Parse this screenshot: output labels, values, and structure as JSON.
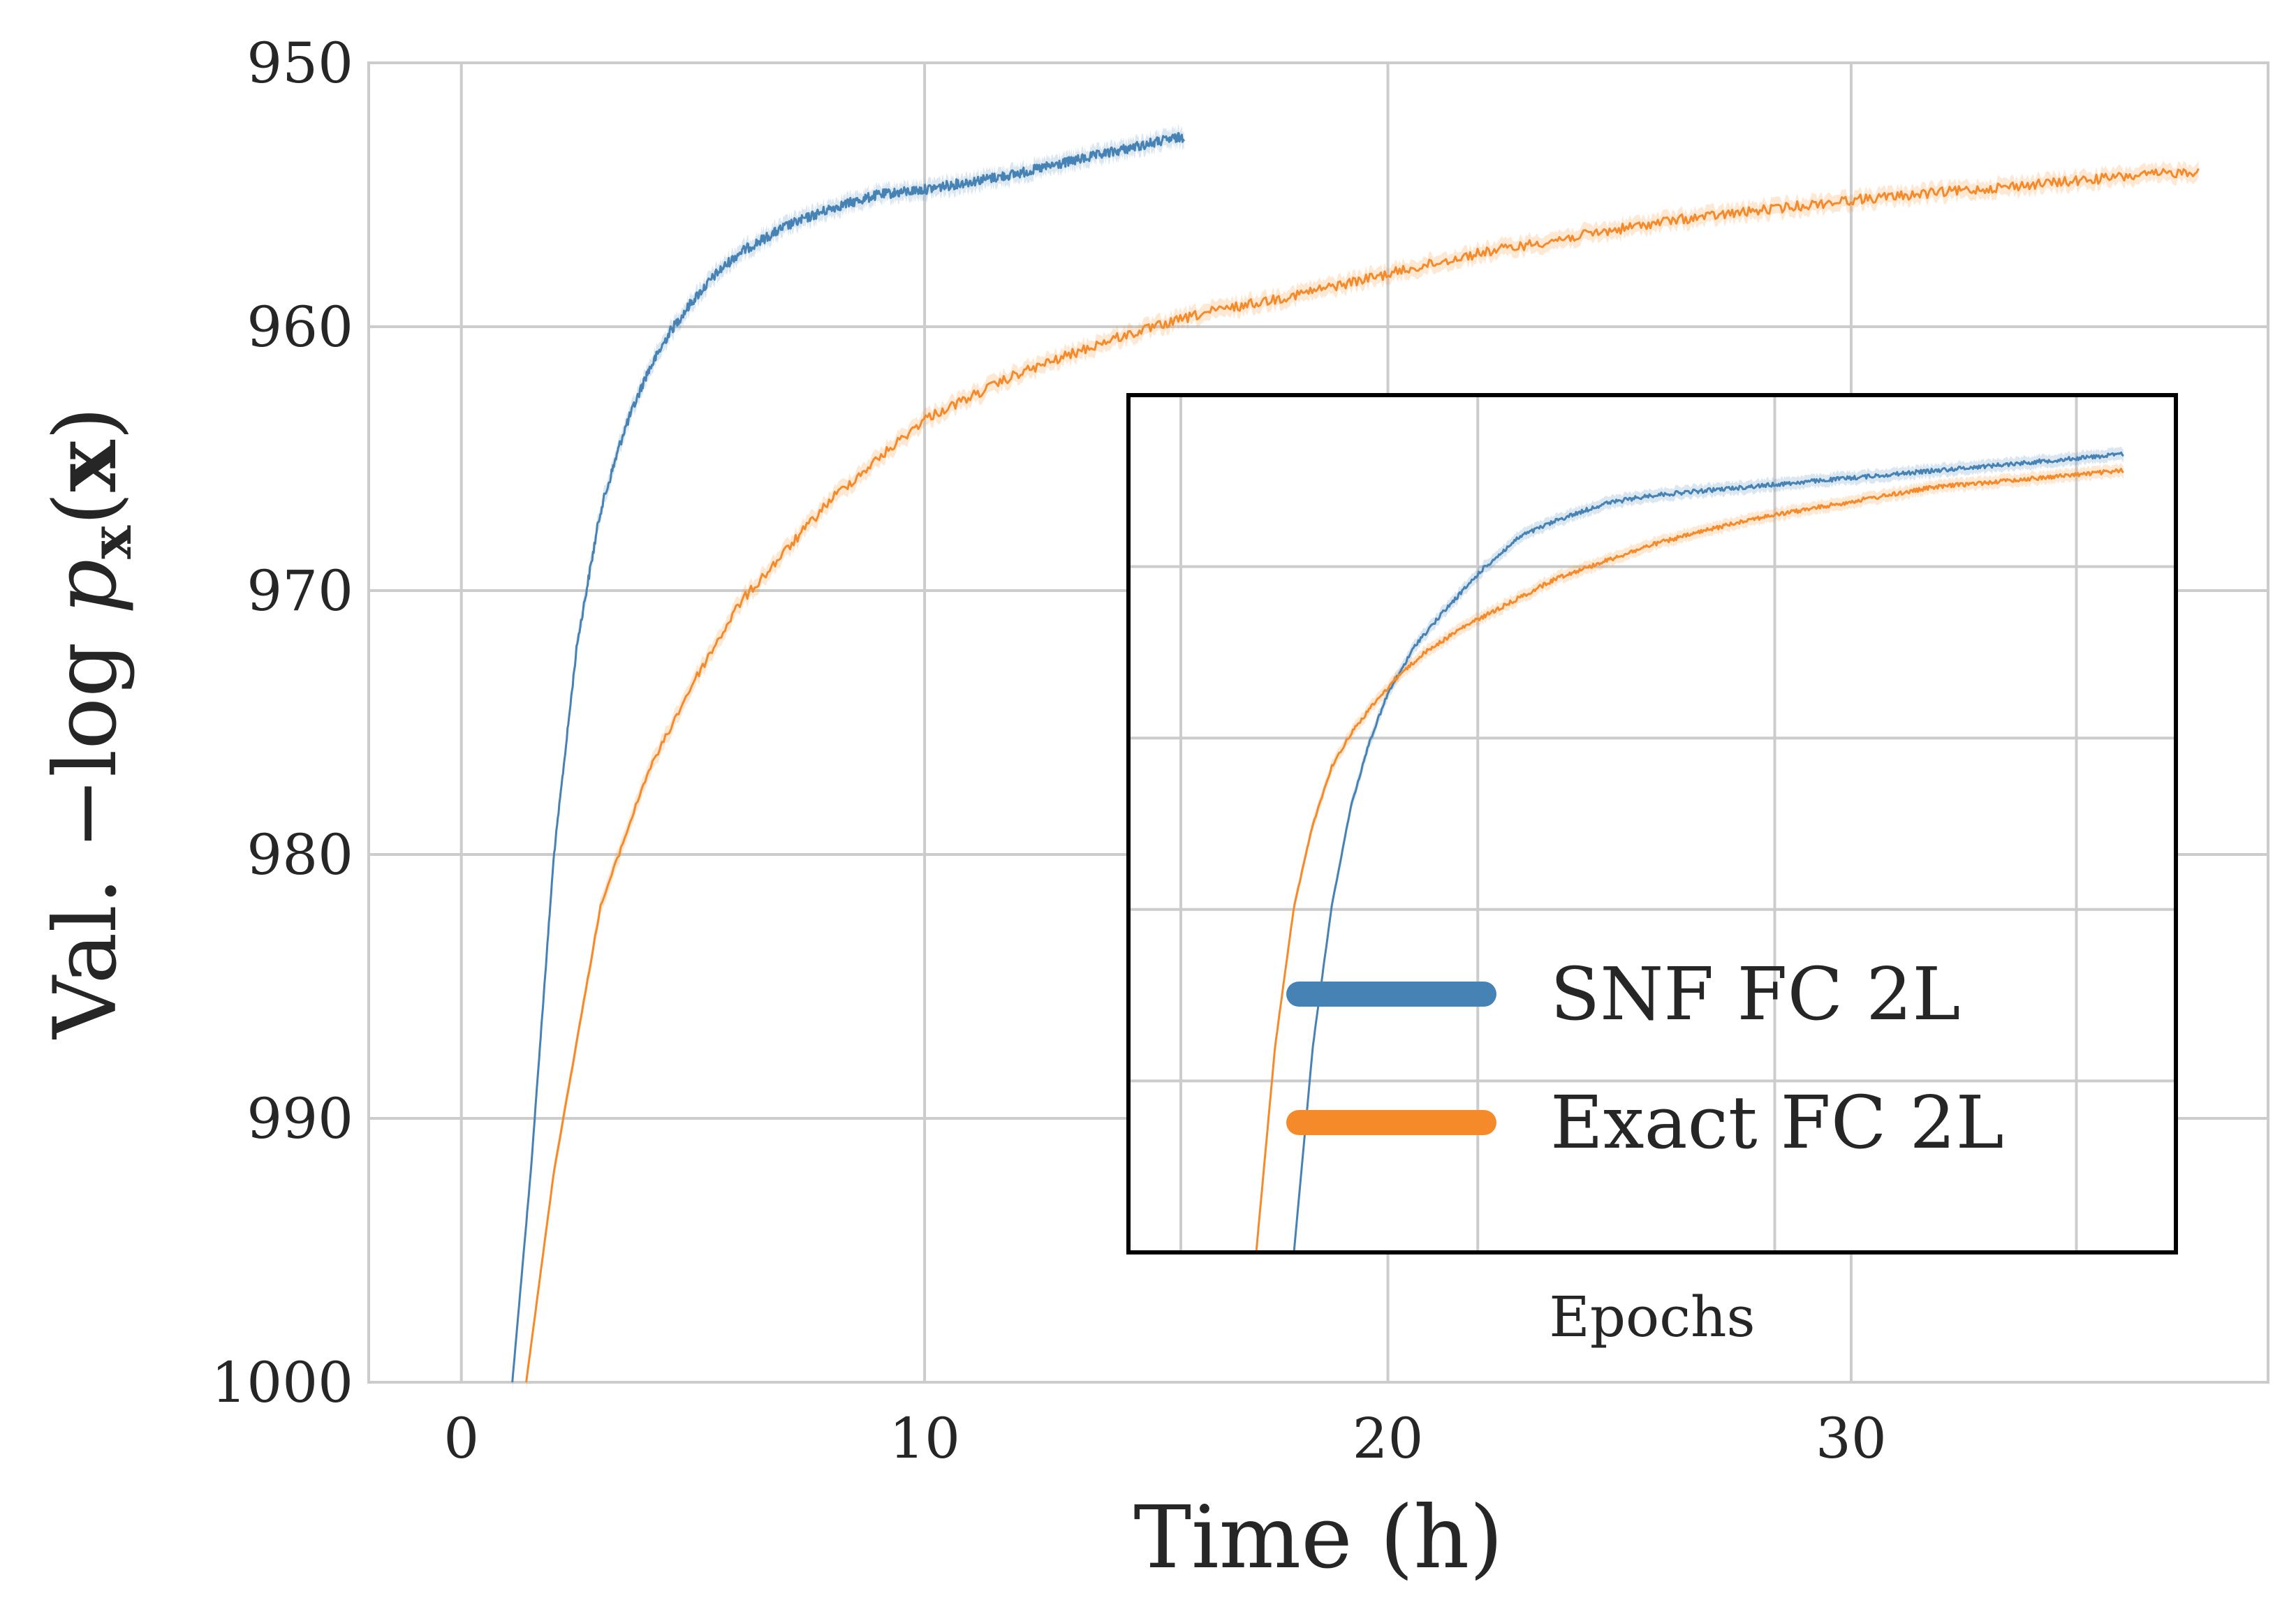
{
  "chart_data": {
    "type": "line",
    "xlabel": "Time (h)",
    "ylabel": "Val. −log pₓ(x)",
    "ylabel_parts": {
      "prefix": "Val. −log ",
      "p": "p",
      "sub": "x",
      "open": "(",
      "x": "x",
      "close": ")"
    },
    "xlim": [
      -2,
      39
    ],
    "ylim": [
      1000,
      950
    ],
    "y_inverted": true,
    "xticks": [
      0,
      10,
      20,
      30
    ],
    "yticks": [
      950,
      960,
      970,
      980,
      990,
      1000
    ],
    "xtick_labels": [
      "0",
      "10",
      "20",
      "30"
    ],
    "ytick_labels": [
      "950",
      "960",
      "970",
      "980",
      "990",
      "1000"
    ],
    "grid": true,
    "series": [
      {
        "name": "SNF FC 2L",
        "color": "#4682b4",
        "x": [
          1.1,
          1.5,
          2.0,
          2.5,
          3.0,
          3.5,
          4.0,
          4.5,
          5.0,
          5.5,
          6.0,
          7.0,
          8.0,
          9.0,
          10.0,
          11.0,
          12.0,
          13.0,
          14.0,
          15.0,
          15.6
        ],
        "y": [
          1000,
          992,
          980,
          972,
          967,
          964,
          961.8,
          960.2,
          959.0,
          958.0,
          957.2,
          956.2,
          955.5,
          955.0,
          954.8,
          954.5,
          954.2,
          953.8,
          953.4,
          953.0,
          952.8
        ]
      },
      {
        "name": "Exact FC 2L",
        "color": "#f58a2a",
        "x": [
          1.4,
          2.0,
          3.0,
          4.0,
          5.0,
          6.0,
          8.0,
          10.0,
          12.0,
          14.0,
          16.0,
          18.0,
          20.0,
          22.0,
          24.0,
          26.0,
          28.0,
          30.0,
          32.0,
          34.0,
          36.0,
          37.5
        ],
        "y": [
          1000,
          992,
          982,
          977,
          973.5,
          970.5,
          966.5,
          963.5,
          961.8,
          960.5,
          959.5,
          958.8,
          958.0,
          957.2,
          956.6,
          956.0,
          955.6,
          955.2,
          954.9,
          954.6,
          954.3,
          954.1
        ]
      }
    ],
    "legend": {
      "placement": "lower-right of inset"
    },
    "inset": {
      "xlabel": "Epochs",
      "grid": true,
      "series": [
        {
          "name": "SNF FC 2L",
          "color": "#4682b4",
          "x": [
            0.12,
            0.14,
            0.16,
            0.18,
            0.2,
            0.22,
            0.25,
            0.28,
            0.32,
            0.36,
            0.4,
            0.45,
            0.5,
            0.55,
            0.6,
            0.7,
            0.8,
            0.9,
            1.0
          ],
          "y": [
            0.0,
            0.25,
            0.42,
            0.54,
            0.62,
            0.68,
            0.74,
            0.78,
            0.83,
            0.87,
            0.89,
            0.91,
            0.92,
            0.925,
            0.93,
            0.94,
            0.95,
            0.96,
            0.97
          ]
        },
        {
          "name": "Exact FC 2L",
          "color": "#f58a2a",
          "x": [
            0.08,
            0.1,
            0.12,
            0.14,
            0.16,
            0.18,
            0.2,
            0.23,
            0.26,
            0.3,
            0.35,
            0.4,
            0.5,
            0.6,
            0.7,
            0.8,
            0.9,
            1.0
          ],
          "y": [
            0.0,
            0.25,
            0.42,
            0.52,
            0.59,
            0.63,
            0.66,
            0.7,
            0.73,
            0.76,
            0.79,
            0.82,
            0.86,
            0.89,
            0.91,
            0.93,
            0.94,
            0.95
          ]
        }
      ]
    }
  }
}
